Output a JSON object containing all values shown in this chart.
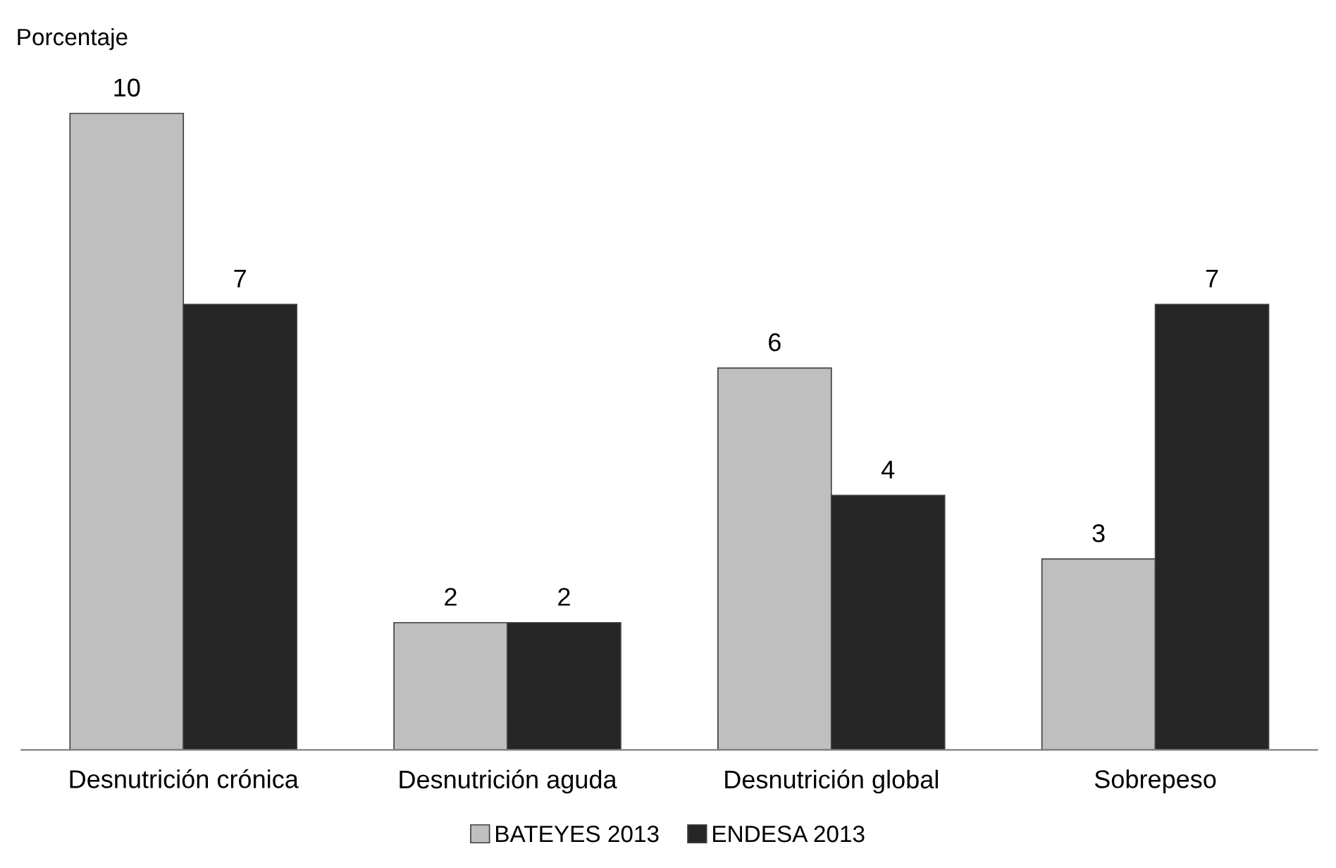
{
  "chart_data": {
    "type": "bar",
    "ylabel": "Porcentaje",
    "categories": [
      "Desnutrición crónica",
      "Desnutrición aguda",
      "Desnutrición global",
      "Sobrepeso"
    ],
    "series": [
      {
        "name": "BATEYES 2013",
        "color": "#bfbfbf",
        "values": [
          10,
          2,
          6,
          3
        ]
      },
      {
        "name": "ENDESA 2013",
        "color": "#262626",
        "values": [
          7,
          2,
          4,
          7
        ]
      }
    ],
    "data_labels": true,
    "legend": "bottom",
    "grid": false
  }
}
